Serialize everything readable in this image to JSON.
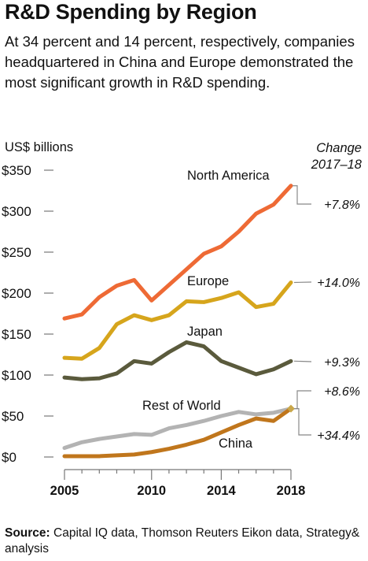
{
  "title": "R&D Spending by Region",
  "subtitle": "At 34 percent and 14 percent, respectively, companies headquartered in China and Europe demonstrated the most significant growth in R&D spending.",
  "units_label": "US$ billions",
  "change_header": [
    "Change",
    "2017–18"
  ],
  "source_label": "Source:",
  "source_text": " Capital IQ data, Thomson Reuters Eikon data, Strategy& analysis",
  "chart_data": {
    "type": "line",
    "ylabel": "US$ billions",
    "ylim": [
      0,
      350
    ],
    "yticks": [
      0,
      50,
      100,
      150,
      200,
      250,
      300,
      350
    ],
    "ytick_labels": [
      "$0",
      "$50",
      "$100",
      "$150",
      "$200",
      "$250",
      "$300",
      "$350"
    ],
    "xlim": [
      2005,
      2018
    ],
    "xticks": [
      2005,
      2010,
      2014,
      2018
    ],
    "x": [
      2005,
      2006,
      2007,
      2008,
      2009,
      2010,
      2011,
      2012,
      2013,
      2014,
      2015,
      2016,
      2017,
      2018
    ],
    "grid": false,
    "series": [
      {
        "name": "North America",
        "color": "#ee6a35",
        "change": "+7.8%",
        "values": [
          169,
          174,
          195,
          209,
          216,
          191,
          210,
          229,
          248,
          257,
          275,
          297,
          308,
          331
        ]
      },
      {
        "name": "Europe",
        "color": "#d6a51c",
        "change": "+14.0%",
        "values": [
          121,
          120,
          133,
          162,
          173,
          167,
          173,
          190,
          189,
          194,
          201,
          183,
          187,
          213
        ]
      },
      {
        "name": "Japan",
        "color": "#5a5a3c",
        "change": "+9.3%",
        "values": [
          97,
          95,
          96,
          102,
          117,
          114,
          128,
          140,
          135,
          117,
          109,
          101,
          107,
          117
        ]
      },
      {
        "name": "Rest of World",
        "color": "#b3b3b3",
        "change": "+8.6%",
        "values": [
          11,
          18,
          22,
          25,
          28,
          27,
          35,
          39,
          44,
          50,
          55,
          52,
          54,
          59
        ]
      },
      {
        "name": "China",
        "color": "#c0761c",
        "change": "+34.4%",
        "values": [
          1,
          1,
          1,
          2,
          3,
          6,
          10,
          15,
          21,
          30,
          39,
          47,
          44,
          59
        ]
      }
    ]
  }
}
